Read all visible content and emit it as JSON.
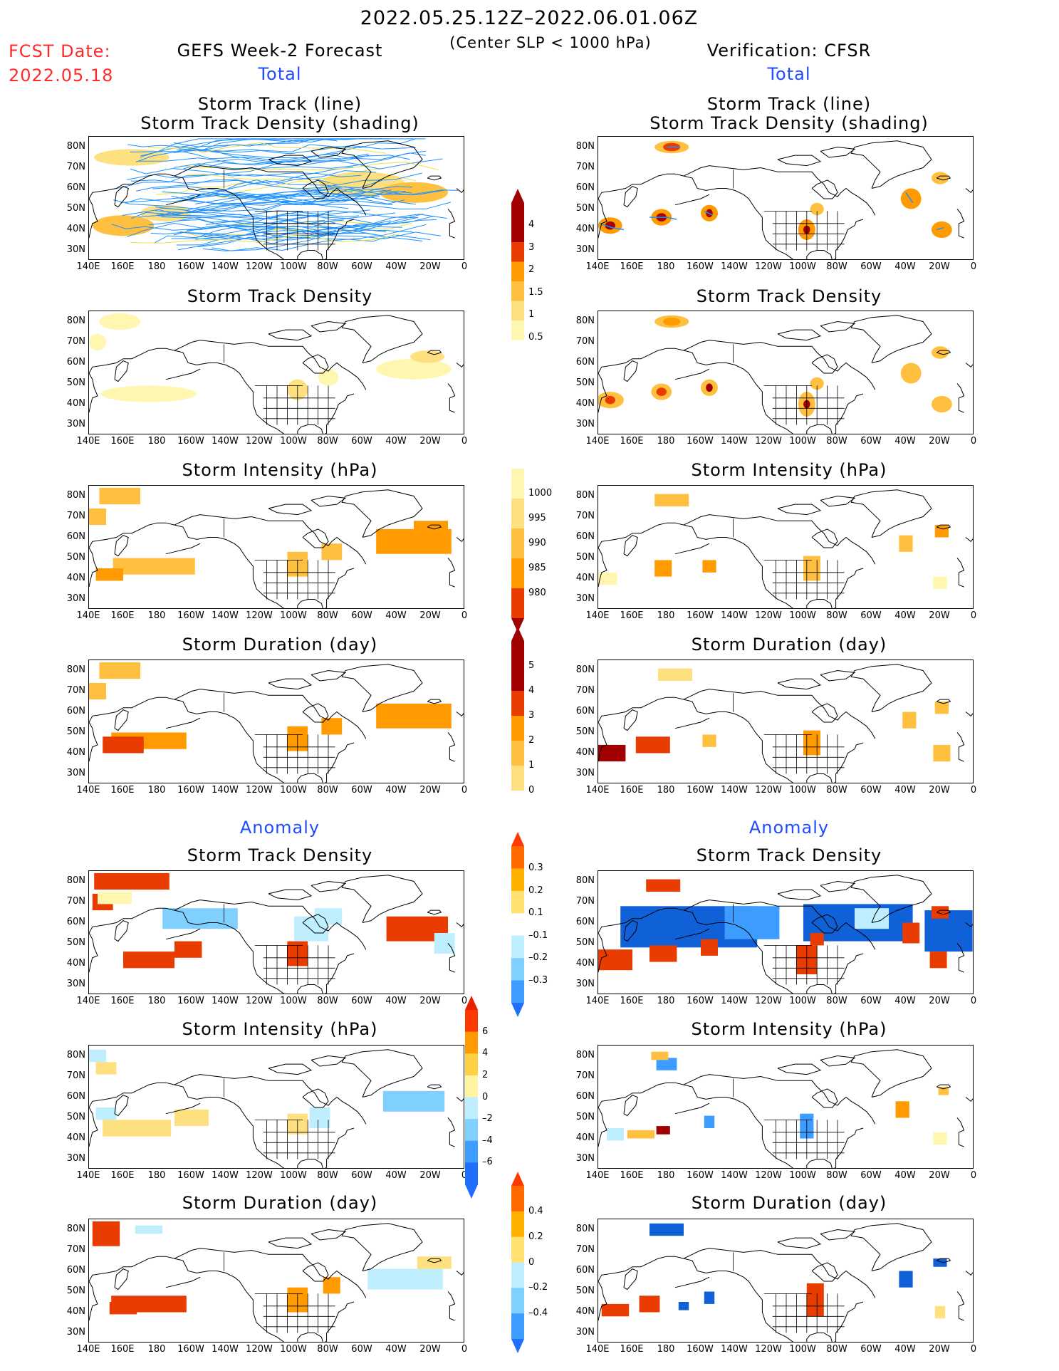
{
  "header": {
    "date_range": "2022.05.25.12Z–2022.06.01.06Z",
    "subtitle": "(Center SLP < 1000 hPa)",
    "fcst_label": "FCST Date:",
    "fcst_date": "2022.05.18",
    "left_title": "GEFS Week-2 Forecast",
    "right_title": "Verification: CFSR",
    "total_left": "Total",
    "total_right": "Total",
    "anomaly_left": "Anomaly",
    "anomaly_right": "Anomaly"
  },
  "panels": {
    "track_line": "Storm Track (line)",
    "track_density_shading": "Storm Track Density (shading)",
    "density": "Storm Track Density",
    "intensity": "Storm Intensity (hPa)",
    "duration": "Storm Duration (day)"
  },
  "axes": {
    "lat_labels": [
      "80N",
      "70N",
      "60N",
      "50N",
      "40N",
      "30N"
    ],
    "lon_labels": [
      "140E",
      "160E",
      "180",
      "160W",
      "140W",
      "120W",
      "100W",
      "80W",
      "60W",
      "40W",
      "20W",
      "0"
    ]
  },
  "colorbars": {
    "density_total": [
      "4",
      "3",
      "2",
      "1.5",
      "1",
      "0.5"
    ],
    "intensity_total": [
      "1000",
      "995",
      "990",
      "985",
      "980"
    ],
    "duration_total": [
      "5",
      "4",
      "3",
      "2",
      "1",
      "0"
    ],
    "density_anom": [
      "0.3",
      "0.2",
      "0.1",
      "–0.1",
      "–0.2",
      "–0.3"
    ],
    "intensity_anom": [
      "6",
      "4",
      "2",
      "0",
      "–2",
      "–4",
      "–6"
    ],
    "duration_anom": [
      "0.4",
      "0.2",
      "0",
      "–0.2",
      "–0.4"
    ]
  },
  "colors": {
    "title_red": "#ff2a2a",
    "accent_blue": "#1f4cff",
    "track_line": "#1e90ff",
    "track_line_alt": "#f0e040",
    "scale_warm": [
      "#fff7b0",
      "#ffe080",
      "#ffc040",
      "#ff9a00",
      "#e83c00",
      "#a00000"
    ],
    "scale_cold": [
      "#bfefff",
      "#7fd0ff",
      "#3c9cff",
      "#1060d8"
    ]
  },
  "chart_data": [
    {
      "type": "heatmap",
      "title": "Storm Track (line) Storm Track Density (shading)",
      "source": "GEFS Week-2 Forecast",
      "note": "dense tracks spanning 140E–0"
    },
    {
      "type": "heatmap",
      "title": "Storm Track (line) Storm Track Density (shading)",
      "source": "Verification: CFSR"
    },
    {
      "type": "heatmap",
      "title": "Storm Track Density",
      "source": "GEFS Week-2 Forecast"
    },
    {
      "type": "heatmap",
      "title": "Storm Track Density",
      "source": "Verification: CFSR"
    },
    {
      "type": "heatmap",
      "title": "Storm Intensity (hPa)",
      "source": "GEFS Week-2 Forecast"
    },
    {
      "type": "heatmap",
      "title": "Storm Intensity (hPa)",
      "source": "Verification: CFSR"
    },
    {
      "type": "heatmap",
      "title": "Storm Duration (day)",
      "source": "GEFS Week-2 Forecast"
    },
    {
      "type": "heatmap",
      "title": "Storm Duration (day)",
      "source": "Verification: CFSR"
    },
    {
      "type": "heatmap",
      "title": "Storm Track Density",
      "source": "GEFS Week-2 Forecast Anomaly"
    },
    {
      "type": "heatmap",
      "title": "Storm Track Density",
      "source": "Verification: CFSR Anomaly"
    },
    {
      "type": "heatmap",
      "title": "Storm Intensity (hPa)",
      "source": "GEFS Week-2 Forecast Anomaly"
    },
    {
      "type": "heatmap",
      "title": "Storm Intensity (hPa)",
      "source": "Verification: CFSR Anomaly"
    },
    {
      "type": "heatmap",
      "title": "Storm Duration (day)",
      "source": "GEFS Week-2 Forecast Anomaly"
    },
    {
      "type": "heatmap",
      "title": "Storm Duration (day)",
      "source": "Verification: CFSR Anomaly"
    }
  ]
}
